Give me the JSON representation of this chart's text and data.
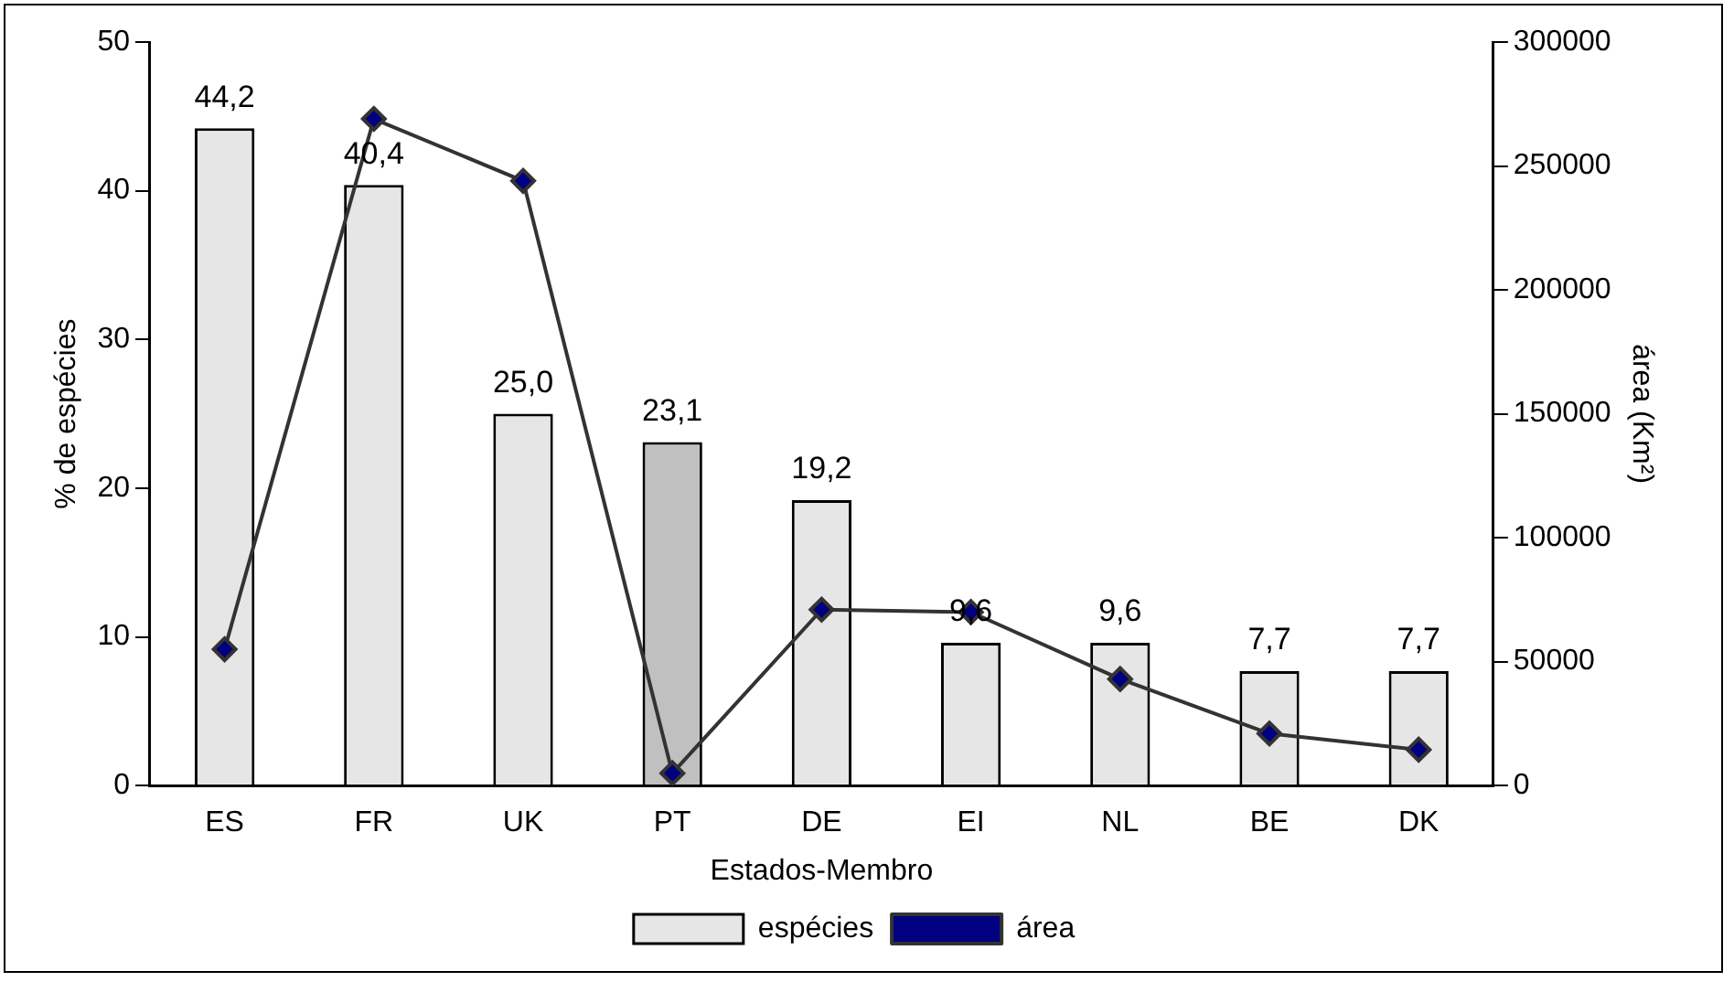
{
  "chart_data": {
    "type": "bar",
    "xlabel": "Estados-Membro",
    "ylabel": "% de espécies",
    "y2label": "área (Km²)",
    "categories": [
      "ES",
      "FR",
      "UK",
      "PT",
      "DE",
      "EI",
      "NL",
      "BE",
      "DK"
    ],
    "series": [
      {
        "name": "espécies",
        "colors": [
          "#e6e6e6",
          "#e6e6e6",
          "#e6e6e6",
          "#c0c0c0",
          "#e6e6e6",
          "#e6e6e6",
          "#e6e6e6",
          "#e6e6e6",
          "#e6e6e6"
        ],
        "values": [
          44.2,
          40.4,
          25.0,
          23.1,
          19.2,
          9.6,
          9.6,
          7.7,
          7.7
        ],
        "value_labels": [
          "44,2",
          "40,4",
          "25,0",
          "23,1",
          "19,2",
          "9,6",
          "9,6",
          "7,7",
          "7,7"
        ]
      },
      {
        "name": "área",
        "type": "line",
        "axis": "y2",
        "color": "#000080",
        "marker": "diamond",
        "values": [
          55000,
          269000,
          244000,
          5000,
          71000,
          70000,
          43000,
          21000,
          14500
        ]
      }
    ],
    "ylim": [
      0,
      50
    ],
    "yticks": [
      0,
      10,
      20,
      30,
      40,
      50
    ],
    "y2lim": [
      0,
      300000
    ],
    "y2ticks": [
      0,
      50000,
      100000,
      150000,
      200000,
      250000,
      300000
    ],
    "grid": false,
    "legend": "bottom"
  }
}
